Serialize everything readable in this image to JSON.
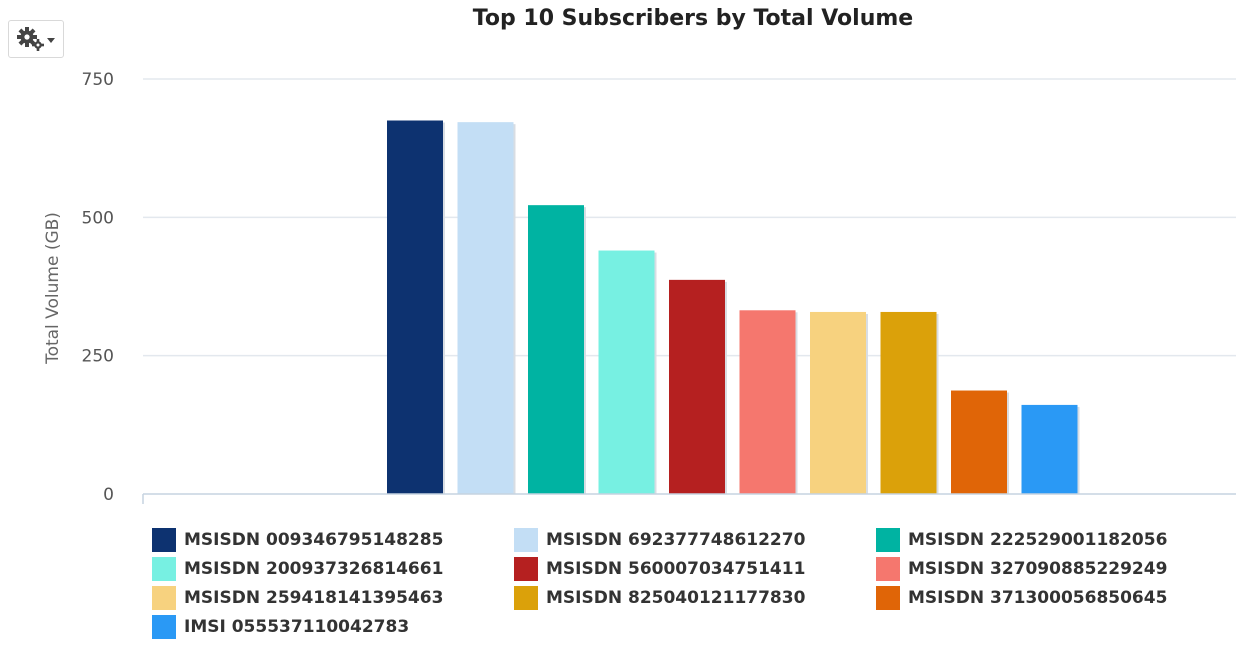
{
  "toolbar": {
    "settings_icon": "gears-icon",
    "dropdown_icon": "caret-down-icon"
  },
  "chart_data": {
    "type": "bar",
    "title": "Top 10 Subscribers by Total Volume",
    "xlabel": "",
    "ylabel": "Total Volume (GB)",
    "ylim": [
      0,
      750
    ],
    "yticks": [
      0,
      250,
      500,
      750
    ],
    "grid": true,
    "legend_position": "bottom",
    "series": [
      {
        "name": "MSISDN 009346795148285",
        "value": 675,
        "color": "#0d3270"
      },
      {
        "name": "MSISDN 692377748612270",
        "value": 672,
        "color": "#c3def5"
      },
      {
        "name": "MSISDN 222529001182056",
        "value": 522,
        "color": "#00b3a2"
      },
      {
        "name": "MSISDN 200937326814661",
        "value": 440,
        "color": "#77f0e2"
      },
      {
        "name": "MSISDN 560007034751411",
        "value": 387,
        "color": "#b52020"
      },
      {
        "name": "MSISDN 327090885229249",
        "value": 332,
        "color": "#f5776e"
      },
      {
        "name": "MSISDN 259418141395463",
        "value": 329,
        "color": "#f7d27f"
      },
      {
        "name": "MSISDN 825040121177830",
        "value": 329,
        "color": "#dba10a"
      },
      {
        "name": "MSISDN 371300056850645",
        "value": 187,
        "color": "#e06507"
      },
      {
        "name": "IMSI 055537110042783",
        "value": 161,
        "color": "#2a99f5"
      }
    ]
  }
}
